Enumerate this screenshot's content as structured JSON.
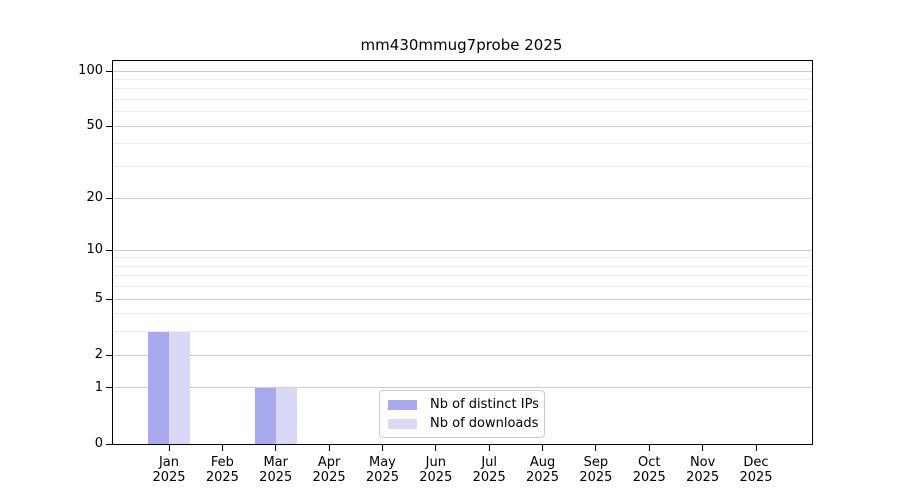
{
  "chart_data": {
    "type": "bar",
    "title": "mm430mmug7probe 2025",
    "categories": [
      "Jan",
      "Feb",
      "Mar",
      "Apr",
      "May",
      "Jun",
      "Jul",
      "Aug",
      "Sep",
      "Oct",
      "Nov",
      "Dec"
    ],
    "category_sublabel": "2025",
    "series": [
      {
        "name": "Nb of distinct IPs",
        "color": "#a9a9ef",
        "values": [
          3,
          0,
          1,
          0,
          0,
          0,
          0,
          0,
          0,
          0,
          0,
          0
        ]
      },
      {
        "name": "Nb of downloads",
        "color": "#d9d9f7",
        "values": [
          3,
          0,
          1,
          0,
          0,
          0,
          0,
          0,
          0,
          0,
          0,
          0
        ]
      }
    ],
    "xlabel": "",
    "ylabel": "",
    "yscale": "log1p",
    "ylim": [
      0,
      113.5
    ],
    "yticks": [
      0,
      1,
      2,
      5,
      10,
      20,
      50,
      100
    ],
    "minor_gridline_values": [
      3,
      4,
      6,
      7,
      8,
      9,
      30,
      40,
      60,
      70,
      80,
      90
    ],
    "grid": true,
    "legend_position": "lower center"
  },
  "colors": {
    "background": "#ffffff",
    "axis": "#000000",
    "major_grid": "#cccccc",
    "minor_grid": "#ebebeb",
    "legend_border": "#cccccc"
  }
}
